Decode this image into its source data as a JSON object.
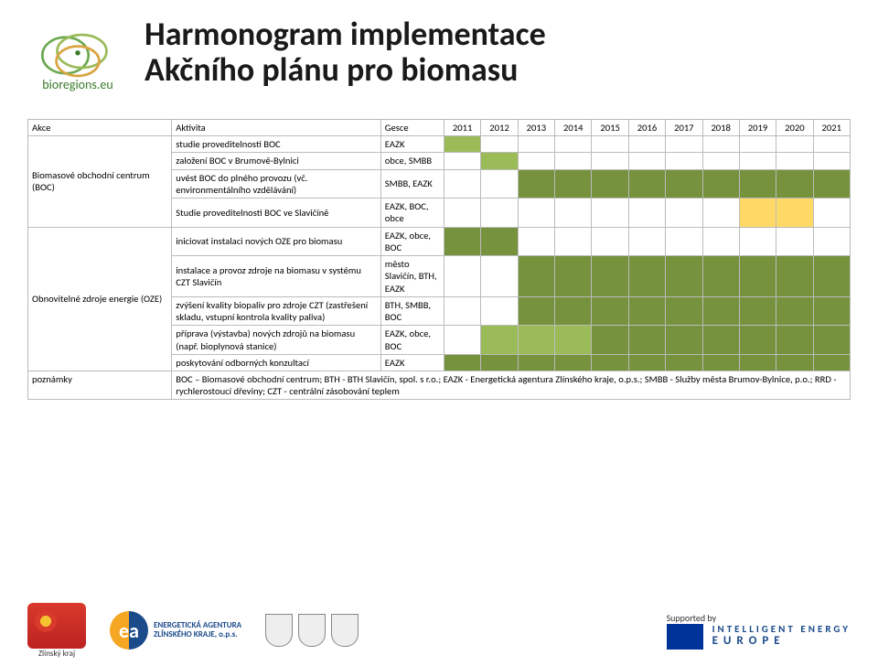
{
  "header": {
    "title_line1": "Harmonogram implementace",
    "title_line2": "Akčního plánu pro biomasu",
    "logo_label": "bioregions.eu"
  },
  "table": {
    "head": {
      "akce": "Akce",
      "aktivita": "Aktivita",
      "gesce": "Gesce"
    },
    "years": [
      "2011",
      "2012",
      "2013",
      "2014",
      "2015",
      "2016",
      "2017",
      "2018",
      "2019",
      "2020",
      "2021"
    ],
    "groups": [
      {
        "label": "Biomasové obchodní centrum (BOC)",
        "rows": [
          {
            "akt": "studie proveditelnosti BOC",
            "ges": "EAZK",
            "cells": [
              "lime",
              "",
              "",
              "",
              "",
              "",
              "",
              "",
              "",
              "",
              ""
            ]
          },
          {
            "akt": "založení BOC v Brumově-Bylnici",
            "ges": "obce, SMBB",
            "cells": [
              "",
              "lime",
              "",
              "",
              "",
              "",
              "",
              "",
              "",
              "",
              ""
            ]
          },
          {
            "akt": "uvést BOC do plného provozu (vč. environmentálního vzdělávání)",
            "ges": "SMBB, EAZK",
            "cells": [
              "",
              "",
              "olive",
              "olive",
              "olive",
              "olive",
              "olive",
              "olive",
              "olive",
              "olive",
              "olive"
            ]
          },
          {
            "akt": "Studie proveditelnosti BOC ve Slavičíně",
            "ges": "EAZK, BOC, obce",
            "cells": [
              "",
              "",
              "",
              "",
              "",
              "",
              "",
              "",
              "yellow",
              "yellow",
              ""
            ]
          }
        ]
      },
      {
        "label": "Obnovitelné zdroje energie (OZE)",
        "rows": [
          {
            "akt": "iniciovat instalaci nových OZE pro biomasu",
            "ges": "EAZK, obce, BOC",
            "cells": [
              "olive",
              "olive",
              "",
              "",
              "",
              "",
              "",
              "",
              "",
              "",
              ""
            ]
          },
          {
            "akt": "instalace a provoz zdroje na biomasu v systému CZT Slavičín",
            "ges": "město Slavičín, BTH, EAZK",
            "cells": [
              "",
              "",
              "olive",
              "olive",
              "olive",
              "olive",
              "olive",
              "olive",
              "olive",
              "olive",
              "olive"
            ]
          },
          {
            "akt": "zvýšení kvality biopaliv pro zdroje CZT (zastřešení skladu, vstupní kontrola kvality paliva)",
            "ges": "BTH, SMBB, BOC",
            "cells": [
              "",
              "",
              "olive",
              "olive",
              "olive",
              "olive",
              "olive",
              "olive",
              "olive",
              "olive",
              "olive"
            ]
          },
          {
            "akt": "příprava (výstavba) nových zdrojů na biomasu (např. bioplynová stanice)",
            "ges": "EAZK, obce, BOC",
            "cells": [
              "",
              "lime",
              "lime",
              "lime",
              "olive",
              "olive",
              "olive",
              "olive",
              "olive",
              "olive",
              "olive"
            ]
          },
          {
            "akt": "poskytování odborných konzultací",
            "ges": "EAZK",
            "cells": [
              "olive",
              "olive",
              "olive",
              "olive",
              "olive",
              "olive",
              "olive",
              "olive",
              "olive",
              "olive",
              "olive"
            ]
          }
        ]
      }
    ],
    "note_label": "poznámky",
    "note_text": "BOC – Biomasové obchodní centrum;  BTH - BTH Slavičín, spol. s r.o.; EAZK - Energetická agentura Zlínského kraje, o.p.s.; SMBB - Služby města Brumov-Bylnice, p.o.;  RRD - rychlerostoucí dřeviny; CZT - centrální zásobování teplem",
    "colors": {
      "lime": "#9bbb59",
      "olive": "#76923c",
      "yellow": "#ffd966",
      "border": "#bbbbbb"
    }
  },
  "footer": {
    "brick_label": "Zlínský kraj",
    "ea_line1": "ENERGETICKÁ AGENTURA",
    "ea_line2": "ZLÍNSKÉHO KRAJE, o.p.s.",
    "supported_by": "Supported by",
    "iee_line1": "INTELLIGENT ENERGY",
    "iee_line2": "EUROPE"
  }
}
